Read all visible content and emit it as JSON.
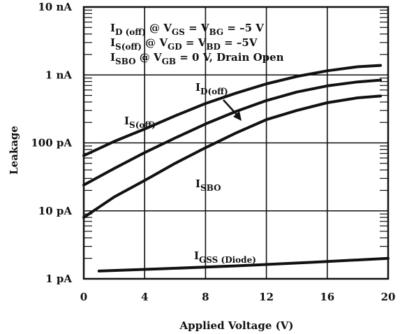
{
  "chart_data": {
    "type": "line",
    "xlabel": "Applied Voltage (V)",
    "ylabel": "Leakage",
    "xlim": [
      0,
      20
    ],
    "ylim": [
      1,
      10000
    ],
    "y_unit": "pA",
    "y_scale": "log",
    "grid": true,
    "x_ticks": [
      "0",
      "4",
      "8",
      "12",
      "16",
      "20"
    ],
    "y_ticks": [
      {
        "value": 10000,
        "label": "10 nA"
      },
      {
        "value": 1000,
        "label": "1 nA"
      },
      {
        "value": 100,
        "label": "100 pA"
      },
      {
        "value": 10,
        "label": "10 pA"
      },
      {
        "value": 1,
        "label": "1 pA"
      }
    ],
    "condition_lines": [
      {
        "main": "I",
        "sub": "D (off)",
        "rest1": " @ V",
        "sub2": "GS",
        "rest2": " = V",
        "sub3": "BG",
        "rest3": " = –5 V"
      },
      {
        "main": "I",
        "sub": "S(off)",
        "rest1": " @ V",
        "sub2": "GD",
        "rest2": " = V",
        "sub3": "BD",
        "rest3": " = –5V"
      },
      {
        "main": "I",
        "sub": "SBO",
        "rest1": " @ V",
        "sub2": "GB",
        "rest2": " = 0 V, Drain Open",
        "sub3": "",
        "rest3": ""
      }
    ],
    "series": [
      {
        "name": "I_S(off)",
        "label_main": "I",
        "label_sub": "S(off)",
        "x": [
          0,
          2,
          4,
          6,
          8,
          10,
          12,
          14,
          16,
          18,
          19.5
        ],
        "y": [
          65,
          105,
          160,
          250,
          380,
          540,
          740,
          950,
          1150,
          1320,
          1380
        ]
      },
      {
        "name": "I_D(off)",
        "label_main": "I",
        "label_sub": "D(off)",
        "x": [
          0,
          2,
          4,
          6,
          8,
          10,
          12,
          14,
          16,
          18,
          19.5
        ],
        "y": [
          24,
          42,
          72,
          118,
          190,
          290,
          420,
          560,
          690,
          790,
          840
        ]
      },
      {
        "name": "I_SBO",
        "label_main": "I",
        "label_sub": "SBO",
        "x": [
          0,
          2,
          4,
          6,
          8,
          10,
          12,
          14,
          16,
          18,
          19.5
        ],
        "y": [
          8,
          16,
          28,
          50,
          85,
          140,
          220,
          300,
          390,
          460,
          490
        ]
      },
      {
        "name": "I_GSS (Diode)",
        "label_main": "I",
        "label_sub": "GSS (Diode)",
        "x": [
          1,
          5,
          10,
          15,
          20
        ],
        "y": [
          1.3,
          1.4,
          1.55,
          1.75,
          2.0
        ]
      }
    ]
  }
}
